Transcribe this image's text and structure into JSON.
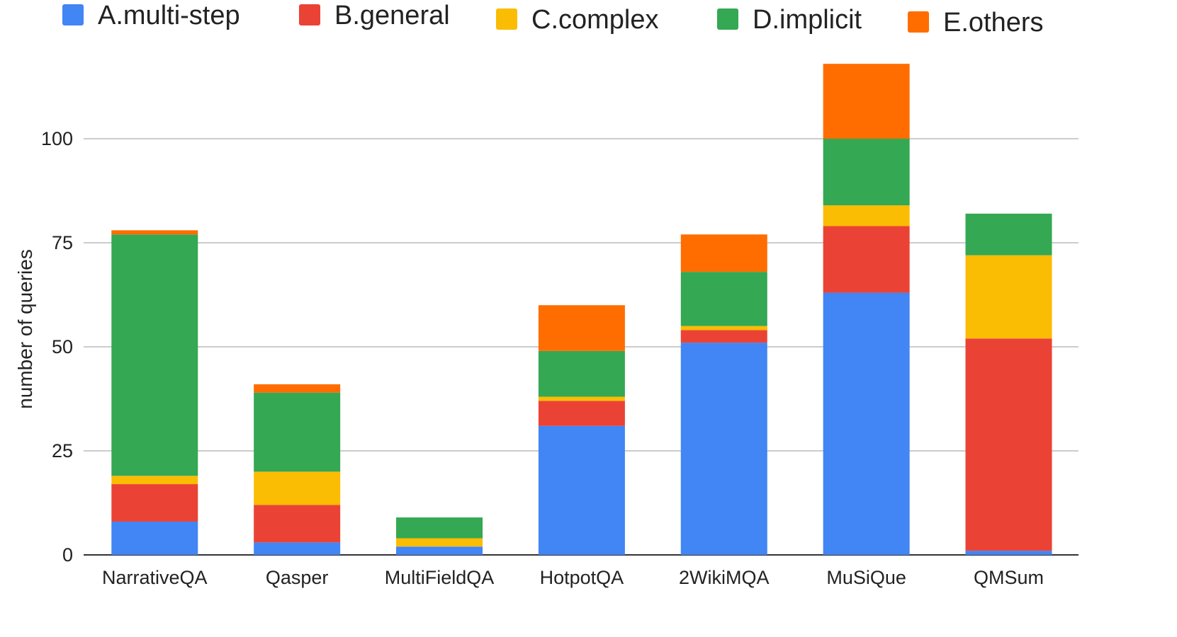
{
  "chart_data": {
    "type": "bar",
    "stacked": true,
    "title": "",
    "xlabel": "",
    "ylabel": "number of queries",
    "ylim": [
      0,
      118
    ],
    "yticks": [
      0,
      25,
      50,
      75,
      100
    ],
    "grid": true,
    "legend_position": "top",
    "categories": [
      "NarrativeQA",
      "Qasper",
      "MultiFieldQA",
      "HotpotQA",
      "2WikiMQA",
      "MuSiQue",
      "QMSum"
    ],
    "series": [
      {
        "name": "A.multi-step",
        "color": "#4285f4",
        "values": [
          8,
          3,
          2,
          31,
          51,
          63,
          1
        ]
      },
      {
        "name": "B.general",
        "color": "#ea4335",
        "values": [
          9,
          9,
          0,
          6,
          3,
          16,
          51
        ]
      },
      {
        "name": "C.complex",
        "color": "#fbbc04",
        "values": [
          2,
          8,
          2,
          1,
          1,
          5,
          20
        ]
      },
      {
        "name": "D.implicit",
        "color": "#34a853",
        "values": [
          58,
          19,
          5,
          11,
          13,
          16,
          10
        ]
      },
      {
        "name": "E.others",
        "color": "#ff6d01",
        "values": [
          1,
          2,
          0,
          11,
          9,
          18,
          0
        ]
      }
    ]
  }
}
